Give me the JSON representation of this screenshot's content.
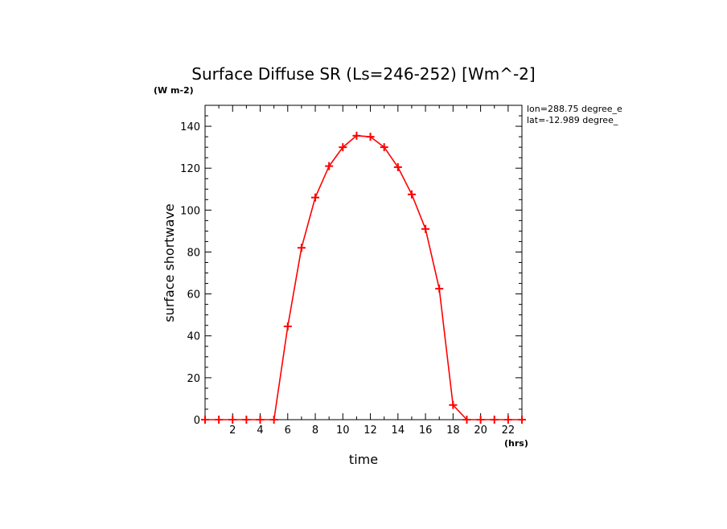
{
  "chart_data": {
    "type": "line",
    "title": "Surface Diffuse SR (Ls=246-252) [Wm^-2]",
    "ylabel": "surface shortwave",
    "yunit": "(W m-2)",
    "xlabel": "time",
    "xunit": "(hrs)",
    "annotations": [
      "lon=288.75 degree_e",
      "lat=-12.989 degree_"
    ],
    "xlim": [
      0,
      23
    ],
    "ylim": [
      0,
      150
    ],
    "xticks": [
      2,
      4,
      6,
      8,
      10,
      12,
      14,
      16,
      18,
      20,
      22
    ],
    "yticks": [
      0,
      20,
      40,
      60,
      80,
      100,
      120,
      140
    ],
    "grid": false,
    "series": [
      {
        "color": "#ff0000",
        "marker": "plus",
        "x": [
          0.0,
          1.0,
          2.0,
          3.0,
          4.0,
          5.0,
          6.0,
          7.0,
          8.0,
          9.0,
          10.0,
          11.0,
          12.0,
          13.0,
          14.0,
          15.0,
          16.0,
          17.0,
          18.0,
          19.0,
          20.0,
          21.0,
          22.0,
          23.0
        ],
        "y": [
          0,
          0,
          0,
          0,
          0,
          0,
          44.5,
          82,
          106,
          121,
          130,
          135.5,
          135,
          130,
          120.5,
          107.5,
          91,
          62.5,
          7,
          0,
          0,
          0,
          0,
          0
        ]
      }
    ]
  }
}
